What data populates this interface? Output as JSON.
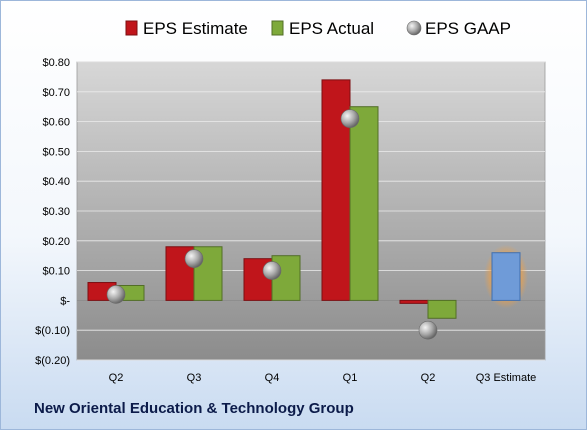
{
  "chart_data": {
    "type": "bar",
    "categories": [
      "Q2",
      "Q3",
      "Q4",
      "Q1",
      "Q2",
      "Q3 Estimate"
    ],
    "series": [
      {
        "name": "EPS Estimate",
        "values": [
          0.06,
          0.18,
          0.14,
          0.74,
          -0.01,
          null
        ],
        "color": "#c0151b"
      },
      {
        "name": "EPS Actual",
        "values": [
          0.05,
          0.18,
          0.15,
          0.65,
          -0.06,
          null
        ],
        "color": "#7ea93a"
      },
      {
        "name": "EPS GAAP",
        "values": [
          0.02,
          0.14,
          0.1,
          0.61,
          -0.1,
          null
        ],
        "color": "#a6a6a6"
      },
      {
        "name": "",
        "values": [
          null,
          null,
          null,
          null,
          null,
          0.16
        ],
        "color": "#6f9bd8",
        "highlight": "#f0a044"
      }
    ],
    "ylim": [
      -0.2,
      0.8
    ],
    "yticks": [
      {
        "value": 0.8,
        "label": "$0.80"
      },
      {
        "value": 0.7,
        "label": "$0.70"
      },
      {
        "value": 0.6,
        "label": "$0.60"
      },
      {
        "value": 0.5,
        "label": "$0.50"
      },
      {
        "value": 0.4,
        "label": "$0.40"
      },
      {
        "value": 0.3,
        "label": "$0.30"
      },
      {
        "value": 0.2,
        "label": "$0.20"
      },
      {
        "value": 0.1,
        "label": "$0.10"
      },
      {
        "value": 0,
        "label": "$-"
      },
      {
        "value": -0.1,
        "label": "$(0.10)"
      },
      {
        "value": -0.2,
        "label": "$(0.20)"
      }
    ],
    "grid": true,
    "legend_position": "top",
    "title": "",
    "xlabel": "",
    "ylabel": ""
  },
  "footer": {
    "company": "New Oriental Education & Technology Group"
  }
}
